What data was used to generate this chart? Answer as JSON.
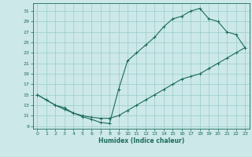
{
  "xlabel": "Humidex (Indice chaleur)",
  "bg_color": "#cce8e8",
  "grid_color": "#99cccc",
  "line_color": "#1a6b5a",
  "xlim": [
    -0.5,
    23.5
  ],
  "ylim": [
    8.5,
    32.5
  ],
  "xticks": [
    0,
    1,
    2,
    3,
    4,
    5,
    6,
    7,
    8,
    9,
    10,
    11,
    12,
    13,
    14,
    15,
    16,
    17,
    18,
    19,
    20,
    21,
    22,
    23
  ],
  "yticks": [
    9,
    11,
    13,
    15,
    17,
    19,
    21,
    23,
    25,
    27,
    29,
    31
  ],
  "line1_x": [
    0,
    1,
    2,
    3,
    4,
    5,
    6,
    7,
    8,
    9,
    10,
    11,
    12,
    13,
    14,
    15,
    16,
    17,
    18,
    19,
    20,
    21,
    22,
    23
  ],
  "line1_y": [
    15,
    14,
    13,
    12.2,
    11.5,
    11,
    10.7,
    10.5,
    10.5,
    11,
    12,
    13,
    14,
    15,
    16,
    17,
    18,
    18.5,
    19,
    20,
    21,
    22,
    23,
    24
  ],
  "line2_x": [
    0,
    1,
    2,
    3,
    4,
    5,
    6,
    7,
    8,
    9,
    10,
    11,
    12,
    13,
    14,
    15,
    16,
    17,
    18,
    19,
    20,
    21,
    22,
    23
  ],
  "line2_y": [
    15,
    14,
    13,
    12.5,
    11.5,
    10.8,
    10.3,
    9.7,
    9.5,
    16,
    21.5,
    23,
    24.5,
    26,
    28,
    29.5,
    30,
    31,
    31.5,
    29.5,
    29,
    27,
    26.5,
    24
  ]
}
